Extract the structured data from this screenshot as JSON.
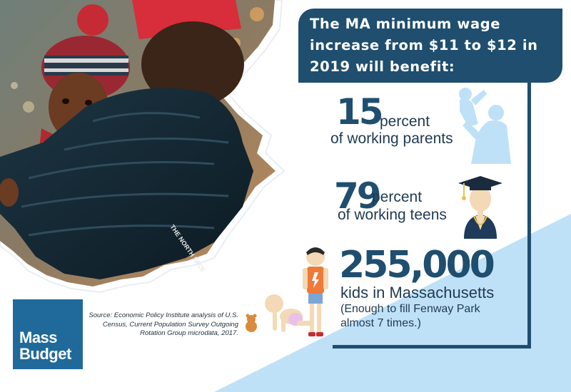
{
  "header": {
    "title": "The MA minimum wage increase from $11 to $12 in 2019 will benefit:"
  },
  "stats": [
    {
      "value": "15",
      "unit": "percent",
      "description": "of working parents",
      "icon": "parent-holding-child-icon"
    },
    {
      "value": "79",
      "unit": "percent",
      "description": "of working teens",
      "icon": "graduate-icon"
    },
    {
      "value": "255,000",
      "description": "kids in Massachusetts",
      "note": "(Enough to fill Fenway Park almost 7 times.)",
      "icon": "children-icon"
    }
  ],
  "source": "Source: Economic Policy Institute analysis of U.S. Census, Current Population Survey Outgoing Rotation Group microdata, 2017.",
  "logo": {
    "line1": "Mass",
    "line2": "Budget"
  },
  "jacket_text": "THE NORTH FACE",
  "colors": {
    "navy": "#1f4e6f",
    "light_blue": "#bfe1f7",
    "logo_blue": "#1f6a9a"
  }
}
